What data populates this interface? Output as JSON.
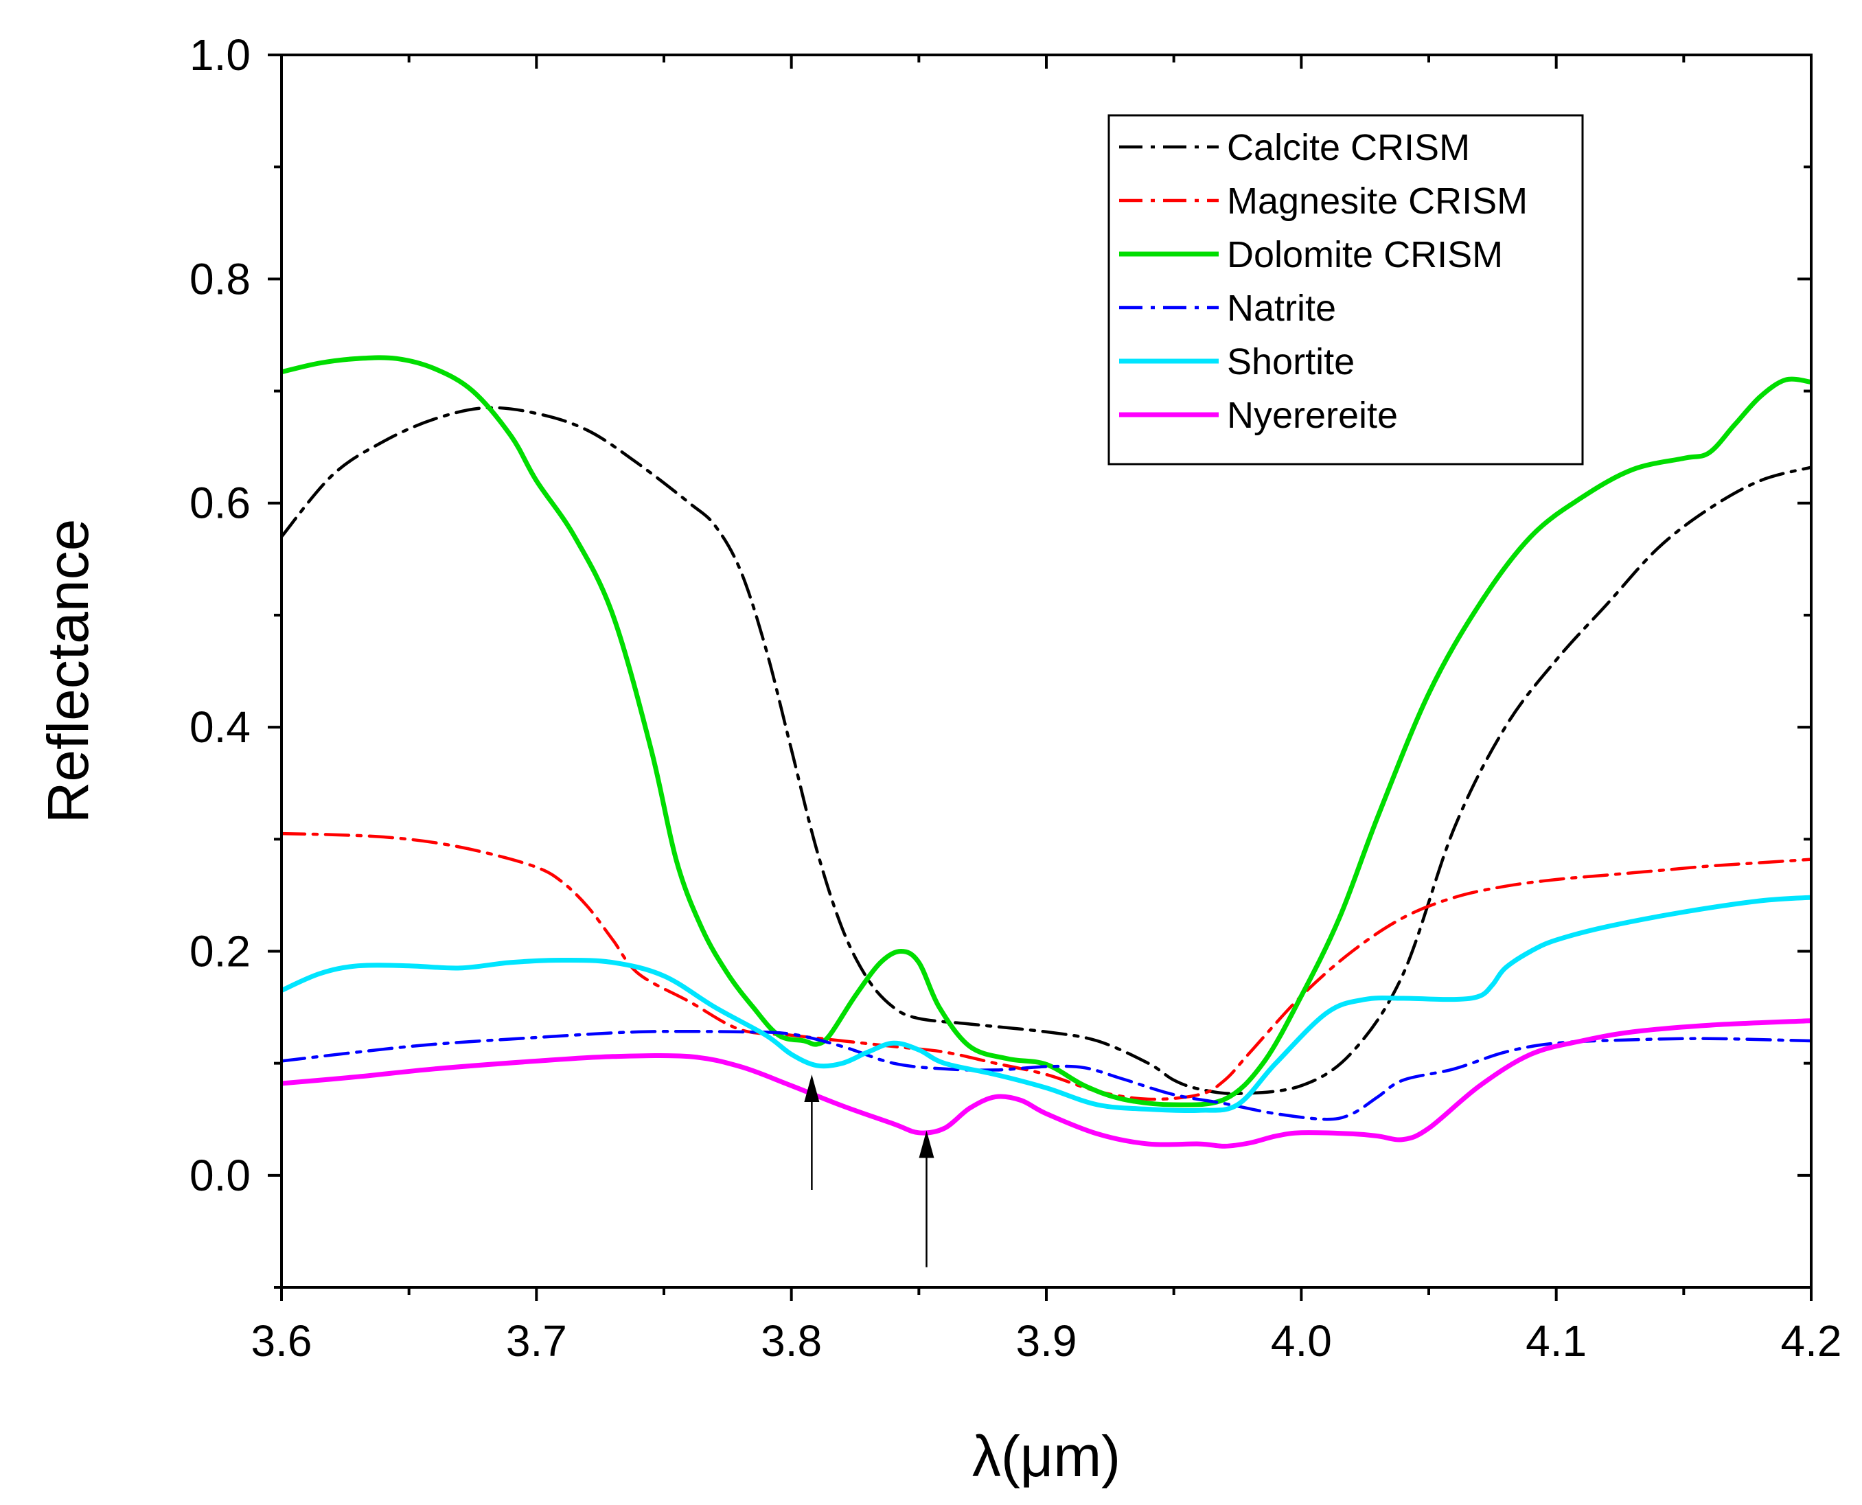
{
  "chart_data": {
    "type": "line",
    "title": "",
    "xlabel": "λ(μm)",
    "ylabel": "Reflectance",
    "xlim": [
      3.6,
      4.2
    ],
    "ylim": [
      -0.1,
      1.0
    ],
    "x_ticks": [
      3.6,
      3.7,
      3.8,
      3.9,
      4.0,
      4.1,
      4.2
    ],
    "x_tick_labels": [
      "3.6",
      "3.7",
      "3.8",
      "3.9",
      "4.0",
      "4.1",
      "4.2"
    ],
    "y_ticks": [
      0.0,
      0.2,
      0.4,
      0.6,
      0.8,
      1.0
    ],
    "y_tick_labels": [
      "0.0",
      "0.2",
      "0.4",
      "0.6",
      "0.8",
      "1.0"
    ],
    "grid": false,
    "legend_position": "top-right",
    "series": [
      {
        "name": "Calcite CRISM",
        "color": "#000000",
        "dash": "dash-dot",
        "x": [
          3.6,
          3.62,
          3.64,
          3.66,
          3.68,
          3.7,
          3.72,
          3.74,
          3.76,
          3.77,
          3.78,
          3.79,
          3.8,
          3.81,
          3.82,
          3.83,
          3.84,
          3.85,
          3.87,
          3.9,
          3.92,
          3.94,
          3.95,
          3.96,
          3.975,
          4.0,
          4.02,
          4.04,
          4.06,
          4.08,
          4.1,
          4.12,
          4.14,
          4.16,
          4.18,
          4.2
        ],
        "y": [
          0.57,
          0.625,
          0.655,
          0.675,
          0.685,
          0.68,
          0.665,
          0.635,
          0.6,
          0.58,
          0.54,
          0.47,
          0.38,
          0.29,
          0.22,
          0.175,
          0.15,
          0.14,
          0.135,
          0.128,
          0.12,
          0.1,
          0.085,
          0.077,
          0.073,
          0.08,
          0.11,
          0.18,
          0.31,
          0.4,
          0.46,
          0.51,
          0.56,
          0.595,
          0.62,
          0.632
        ]
      },
      {
        "name": "Magnesite CRISM",
        "color": "#ff0000",
        "dash": "dash-dot",
        "x": [
          3.6,
          3.62,
          3.64,
          3.66,
          3.68,
          3.7,
          3.71,
          3.72,
          3.73,
          3.74,
          3.76,
          3.78,
          3.8,
          3.82,
          3.84,
          3.86,
          3.88,
          3.9,
          3.92,
          3.94,
          3.96,
          3.97,
          3.98,
          4.0,
          4.02,
          4.04,
          4.06,
          4.08,
          4.1,
          4.12,
          4.14,
          4.16,
          4.18,
          4.2
        ],
        "y": [
          0.305,
          0.304,
          0.302,
          0.297,
          0.288,
          0.275,
          0.262,
          0.24,
          0.21,
          0.18,
          0.155,
          0.13,
          0.125,
          0.12,
          0.115,
          0.11,
          0.1,
          0.09,
          0.075,
          0.068,
          0.072,
          0.085,
          0.11,
          0.16,
          0.2,
          0.23,
          0.248,
          0.258,
          0.264,
          0.268,
          0.272,
          0.276,
          0.279,
          0.282
        ]
      },
      {
        "name": "Dolomite CRISM",
        "color": "#00dd00",
        "dash": "solid",
        "x": [
          3.6,
          3.615,
          3.63,
          3.645,
          3.66,
          3.675,
          3.69,
          3.7,
          3.715,
          3.73,
          3.745,
          3.755,
          3.765,
          3.775,
          3.785,
          3.795,
          3.805,
          3.81,
          3.815,
          3.825,
          3.835,
          3.843,
          3.85,
          3.858,
          3.87,
          3.885,
          3.9,
          3.915,
          3.93,
          3.95,
          3.97,
          3.985,
          4.0,
          4.015,
          4.03,
          4.05,
          4.07,
          4.09,
          4.11,
          4.13,
          4.15,
          4.16,
          4.17,
          4.18,
          4.19,
          4.2
        ],
        "y": [
          0.717,
          0.725,
          0.729,
          0.729,
          0.72,
          0.7,
          0.66,
          0.62,
          0.57,
          0.5,
          0.38,
          0.28,
          0.22,
          0.18,
          0.15,
          0.125,
          0.12,
          0.117,
          0.125,
          0.16,
          0.19,
          0.2,
          0.19,
          0.15,
          0.115,
          0.104,
          0.099,
          0.08,
          0.068,
          0.063,
          0.068,
          0.1,
          0.16,
          0.23,
          0.32,
          0.43,
          0.51,
          0.57,
          0.605,
          0.63,
          0.64,
          0.645,
          0.67,
          0.695,
          0.71,
          0.708
        ]
      },
      {
        "name": "Natrite",
        "color": "#0000ff",
        "dash": "dash-dot",
        "x": [
          3.6,
          3.63,
          3.66,
          3.7,
          3.74,
          3.78,
          3.8,
          3.82,
          3.84,
          3.86,
          3.88,
          3.9,
          3.915,
          3.93,
          3.95,
          3.97,
          3.99,
          4.01,
          4.02,
          4.03,
          4.04,
          4.06,
          4.08,
          4.1,
          4.13,
          4.16,
          4.2
        ],
        "y": [
          0.102,
          0.11,
          0.117,
          0.123,
          0.128,
          0.128,
          0.126,
          0.115,
          0.1,
          0.095,
          0.094,
          0.097,
          0.096,
          0.086,
          0.072,
          0.064,
          0.055,
          0.05,
          0.055,
          0.07,
          0.085,
          0.095,
          0.11,
          0.118,
          0.121,
          0.122,
          0.12
        ]
      },
      {
        "name": "Shortite",
        "color": "#00e5ff",
        "dash": "solid",
        "x": [
          3.6,
          3.615,
          3.63,
          3.65,
          3.67,
          3.69,
          3.71,
          3.73,
          3.75,
          3.77,
          3.79,
          3.8,
          3.81,
          3.82,
          3.83,
          3.84,
          3.85,
          3.86,
          3.88,
          3.9,
          3.92,
          3.94,
          3.96,
          3.975,
          3.99,
          4.01,
          4.025,
          4.04,
          4.06,
          4.07,
          4.075,
          4.08,
          4.09,
          4.1,
          4.12,
          4.15,
          4.18,
          4.2
        ],
        "y": [
          0.165,
          0.18,
          0.187,
          0.187,
          0.185,
          0.19,
          0.192,
          0.19,
          0.178,
          0.15,
          0.125,
          0.108,
          0.098,
          0.1,
          0.11,
          0.118,
          0.112,
          0.1,
          0.09,
          0.078,
          0.063,
          0.059,
          0.058,
          0.063,
          0.1,
          0.145,
          0.157,
          0.158,
          0.157,
          0.16,
          0.17,
          0.185,
          0.2,
          0.21,
          0.222,
          0.235,
          0.245,
          0.248
        ]
      },
      {
        "name": "Nyerereite",
        "color": "#ff00ff",
        "dash": "solid",
        "x": [
          3.6,
          3.63,
          3.66,
          3.7,
          3.73,
          3.76,
          3.78,
          3.8,
          3.82,
          3.84,
          3.85,
          3.86,
          3.87,
          3.88,
          3.89,
          3.9,
          3.92,
          3.94,
          3.96,
          3.97,
          3.98,
          3.99,
          4.0,
          4.02,
          4.03,
          4.04,
          4.05,
          4.07,
          4.09,
          4.11,
          4.13,
          4.16,
          4.2
        ],
        "y": [
          0.082,
          0.088,
          0.095,
          0.102,
          0.106,
          0.106,
          0.097,
          0.08,
          0.062,
          0.046,
          0.038,
          0.042,
          0.06,
          0.07,
          0.067,
          0.055,
          0.037,
          0.028,
          0.028,
          0.026,
          0.029,
          0.035,
          0.038,
          0.037,
          0.035,
          0.032,
          0.042,
          0.08,
          0.108,
          0.12,
          0.128,
          0.134,
          0.138
        ]
      }
    ],
    "annotations": [
      {
        "type": "arrow",
        "x": 3.808,
        "y_from": -0.013,
        "y_to": 0.09
      },
      {
        "type": "arrow",
        "x": 3.853,
        "y_from": -0.082,
        "y_to": 0.04
      }
    ]
  }
}
